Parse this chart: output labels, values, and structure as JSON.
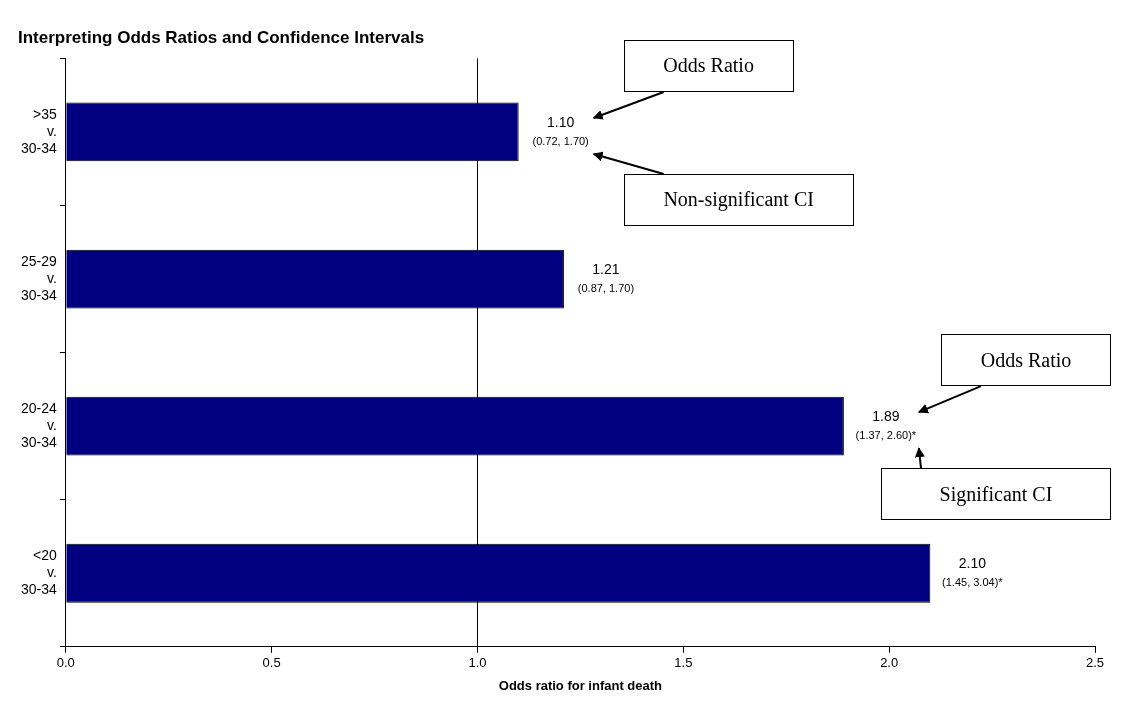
{
  "chart_data": {
    "type": "bar",
    "orientation": "horizontal",
    "title": "Interpreting Odds Ratios and Confidence Intervals",
    "xlabel": "Odds ratio for infant death",
    "categories": [
      ">35\nv.\n30-34",
      "25-29\nv.\n30-34",
      "20-24\nv.\n30-34",
      "<20\nv.\n30-34"
    ],
    "values": [
      1.1,
      1.21,
      1.89,
      2.1
    ],
    "color": "#000080",
    "value_labels": [
      "1.10\n(0.72, 1.70)",
      "1.21\n(0.87, 1.70)",
      "1.89\n(1.37, 2.60)*",
      "2.10\n(1.45, 3.04)*"
    ],
    "xlim": [
      0,
      2.5
    ],
    "xticks": [
      {
        "value": 0,
        "label": "0.0"
      },
      {
        "value": 0.5,
        "label": "0.5"
      },
      {
        "value": 1,
        "label": "1.0"
      },
      {
        "value": 1.5,
        "label": "1.5"
      },
      {
        "value": 2,
        "label": "2.0"
      },
      {
        "value": 2.5,
        "label": "2.5"
      }
    ],
    "ref_lines": [
      {
        "axis": "x",
        "value": 1,
        "color": "#000000"
      }
    ],
    "annotations": [
      "Odds Ratio",
      "Non-significant CI",
      "Odds Ratio",
      "Significant CI"
    ],
    "grid": false,
    "legend": false
  }
}
